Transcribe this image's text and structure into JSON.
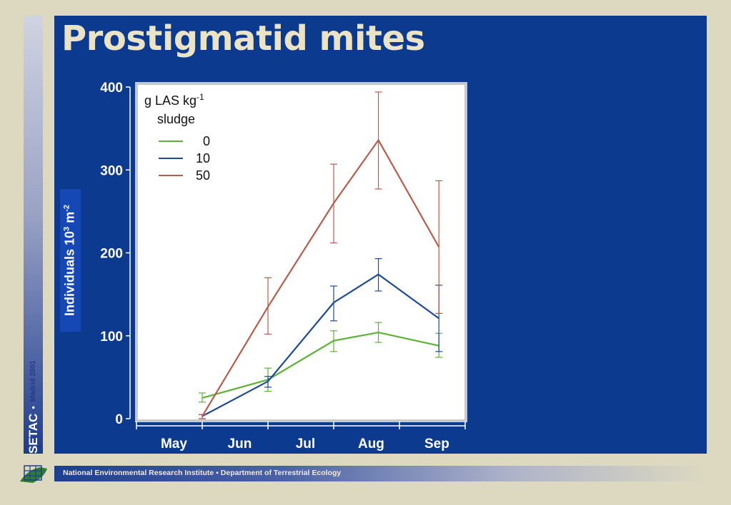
{
  "slide": {
    "title": "Prostigmatid mites",
    "sidebar_org": "SETAC",
    "sidebar_sep": "•",
    "sidebar_event": "Madrid 2001",
    "footer": "National Environmental Research Institute  ▪  Department of Terrestrial Ecology"
  },
  "colors": {
    "page_bg": "#dcd9c0",
    "slide_bg": "#0b3a8e",
    "title": "#ebe3c6",
    "plot_bg": "#ffffff"
  },
  "chart_data": {
    "type": "line",
    "title": "",
    "xlabel": "",
    "ylabel_main": "Individuals 10",
    "ylabel_sup1": "3",
    "ylabel_mid": " m",
    "ylabel_sup2": "-2",
    "categories": [
      "May",
      "Jun",
      "Jul",
      "Aug",
      "Sep"
    ],
    "ylim": [
      0,
      400
    ],
    "yticks": [
      0,
      100,
      200,
      300,
      400
    ],
    "x_points": [
      1.0,
      2.0,
      3.0,
      3.68,
      4.6
    ],
    "legend": {
      "title_line1": "g LAS kg",
      "title_sup": "-1",
      "title_line2": "sludge",
      "position": "top-left"
    },
    "series": [
      {
        "name": "0",
        "color": "#5cb233",
        "y": [
          25,
          47,
          94,
          104,
          88
        ],
        "err_low": [
          20,
          33,
          81,
          92,
          74
        ],
        "err_high": [
          31,
          61,
          106,
          116,
          103
        ]
      },
      {
        "name": "10",
        "color": "#1f4a98",
        "y": [
          3,
          45,
          140,
          174,
          121
        ],
        "err_low": [
          0,
          38,
          118,
          154,
          81
        ],
        "err_high": [
          5,
          51,
          160,
          193,
          161
        ]
      },
      {
        "name": "50",
        "color": "#b85c4c",
        "y": [
          3,
          135,
          260,
          336,
          207
        ],
        "err_low": [
          0,
          102,
          212,
          277,
          127
        ],
        "err_high": [
          5,
          170,
          307,
          394,
          287
        ]
      }
    ]
  }
}
